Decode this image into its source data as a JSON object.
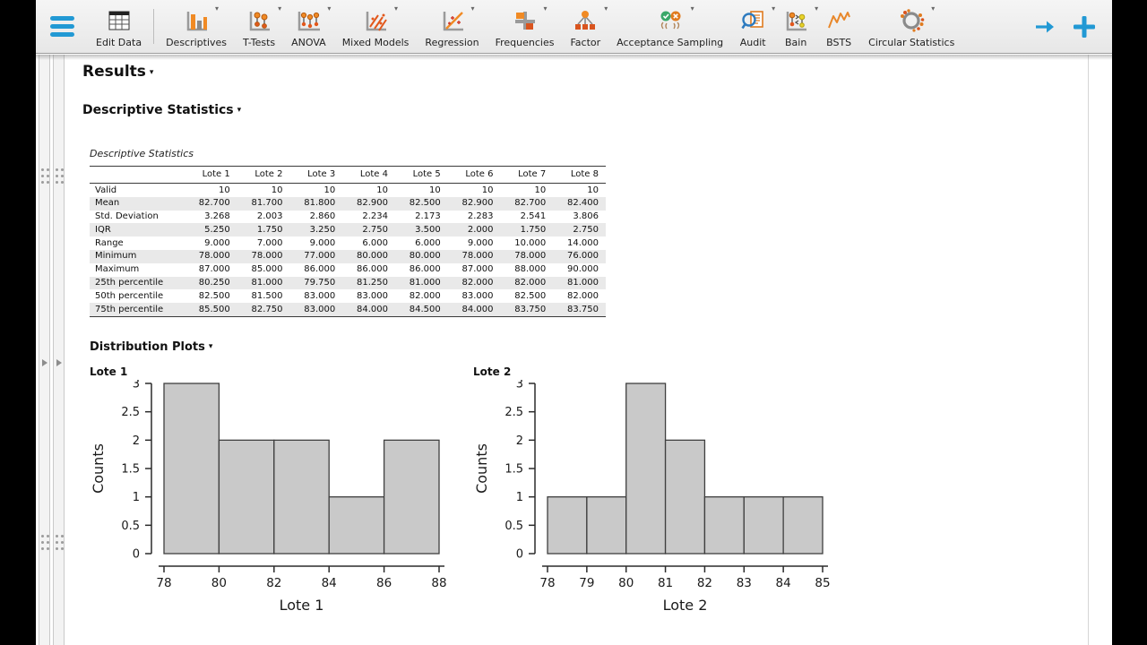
{
  "ui": {
    "caret": "▾"
  },
  "colors": {
    "accent_blue": "#2299d4",
    "icon_orange": "#f08a24",
    "icon_dark_orange": "#d9541e",
    "bar_fill": "#c9c9c9",
    "zebra_row": "#e9e9e9"
  },
  "toolbar": {
    "buttons": [
      {
        "label": "Edit Data",
        "caret": false
      },
      {
        "label": "Descriptives",
        "caret": true
      },
      {
        "label": "T-Tests",
        "caret": true
      },
      {
        "label": "ANOVA",
        "caret": true
      },
      {
        "label": "Mixed Models",
        "caret": true
      },
      {
        "label": "Regression",
        "caret": true
      },
      {
        "label": "Frequencies",
        "caret": true
      },
      {
        "label": "Factor",
        "caret": true
      },
      {
        "label": "Acceptance Sampling",
        "caret": true
      },
      {
        "label": "Audit",
        "caret": true
      },
      {
        "label": "Bain",
        "caret": true
      },
      {
        "label": "BSTS",
        "caret": false
      },
      {
        "label": "Circular Statistics",
        "caret": true
      }
    ]
  },
  "results": {
    "title": "Results",
    "section_title": "Descriptive Statistics",
    "plots_title": "Distribution Plots",
    "table": {
      "title": "Descriptive Statistics",
      "columns": [
        "Lote 1",
        "Lote 2",
        "Lote 3",
        "Lote 4",
        "Lote 5",
        "Lote 6",
        "Lote 7",
        "Lote 8"
      ],
      "rows": [
        {
          "label": "Valid",
          "values": [
            "10",
            "10",
            "10",
            "10",
            "10",
            "10",
            "10",
            "10"
          ]
        },
        {
          "label": "Mean",
          "values": [
            "82.700",
            "81.700",
            "81.800",
            "82.900",
            "82.500",
            "82.900",
            "82.700",
            "82.400"
          ]
        },
        {
          "label": "Std. Deviation",
          "values": [
            "3.268",
            "2.003",
            "2.860",
            "2.234",
            "2.173",
            "2.283",
            "2.541",
            "3.806"
          ]
        },
        {
          "label": "IQR",
          "values": [
            "5.250",
            "1.750",
            "3.250",
            "2.750",
            "3.500",
            "2.000",
            "1.750",
            "2.750"
          ]
        },
        {
          "label": "Range",
          "values": [
            "9.000",
            "7.000",
            "9.000",
            "6.000",
            "6.000",
            "9.000",
            "10.000",
            "14.000"
          ]
        },
        {
          "label": "Minimum",
          "values": [
            "78.000",
            "78.000",
            "77.000",
            "80.000",
            "80.000",
            "78.000",
            "78.000",
            "76.000"
          ]
        },
        {
          "label": "Maximum",
          "values": [
            "87.000",
            "85.000",
            "86.000",
            "86.000",
            "86.000",
            "87.000",
            "88.000",
            "90.000"
          ]
        },
        {
          "label": "25th percentile",
          "values": [
            "80.250",
            "81.000",
            "79.750",
            "81.250",
            "81.000",
            "82.000",
            "82.000",
            "81.000"
          ]
        },
        {
          "label": "50th percentile",
          "values": [
            "82.500",
            "81.500",
            "83.000",
            "83.000",
            "82.000",
            "83.000",
            "82.500",
            "82.000"
          ]
        },
        {
          "label": "75th percentile",
          "values": [
            "85.500",
            "82.750",
            "83.000",
            "84.000",
            "84.500",
            "84.000",
            "83.750",
            "83.750"
          ]
        }
      ]
    }
  },
  "chart_data": [
    {
      "type": "bar",
      "subtype": "histogram",
      "title": "Lote 1",
      "xlabel": "Lote 1",
      "ylabel": "Counts",
      "bin_edges": [
        78,
        80,
        82,
        84,
        86,
        88
      ],
      "counts": [
        3,
        2,
        2,
        1,
        2
      ],
      "x_ticks": [
        78,
        80,
        82,
        84,
        86,
        88
      ],
      "y_ticks": [
        0,
        0.5,
        1,
        1.5,
        2,
        2.5,
        3
      ],
      "xlim": [
        78,
        88
      ],
      "ylim": [
        0,
        3
      ],
      "grid": false,
      "legend": false
    },
    {
      "type": "bar",
      "subtype": "histogram",
      "title": "Lote 2",
      "xlabel": "Lote 2",
      "ylabel": "Counts",
      "bin_edges": [
        78,
        79,
        80,
        81,
        82,
        83,
        84,
        85
      ],
      "counts": [
        1,
        1,
        3,
        2,
        1,
        1,
        1
      ],
      "x_ticks": [
        78,
        79,
        80,
        81,
        82,
        83,
        84,
        85
      ],
      "y_ticks": [
        0,
        0.5,
        1,
        1.5,
        2,
        2.5,
        3
      ],
      "xlim": [
        78,
        85
      ],
      "ylim": [
        0,
        3
      ],
      "grid": false,
      "legend": false
    }
  ]
}
